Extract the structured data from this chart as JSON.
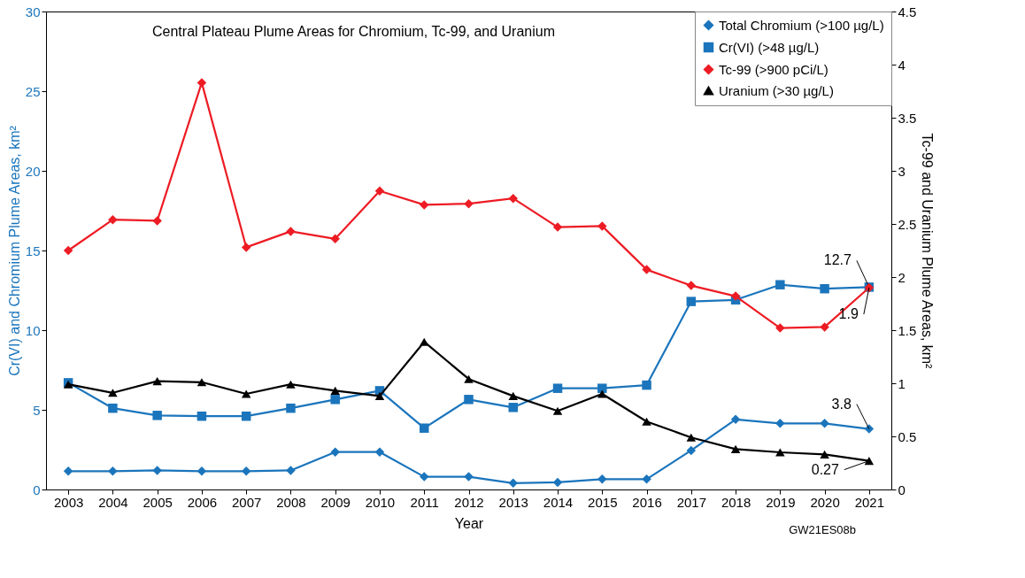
{
  "chart_data": {
    "type": "line",
    "title": "Central Plateau Plume Areas for Chromium, Tc-99, and Uranium",
    "xlabel": "Year",
    "ylabel": "Cr(VI) and Chromium Plume Areas, km²",
    "y2label": "Tc-99 and Uranium Plume Areas, km²",
    "categories": [
      "2003",
      "2004",
      "2005",
      "2006",
      "2007",
      "2008",
      "2009",
      "2010",
      "2011",
      "2012",
      "2013",
      "2014",
      "2015",
      "2016",
      "2017",
      "2018",
      "2019",
      "2020",
      "2021"
    ],
    "series": [
      {
        "name": "Total Chromium (>100 µg/L)",
        "color": "#1b75bc",
        "marker": "diamond",
        "values": [
          1.15,
          1.15,
          1.2,
          1.15,
          1.15,
          1.2,
          2.35,
          2.35,
          0.8,
          0.8,
          0.4,
          0.45,
          0.65,
          0.65,
          2.45,
          4.4,
          4.15,
          4.15,
          3.8
        ],
        "value_labels": [
          null,
          null,
          null,
          null,
          null,
          null,
          null,
          null,
          null,
          null,
          null,
          null,
          null,
          null,
          null,
          null,
          null,
          null,
          "3.8"
        ]
      },
      {
        "name": "Cr(VI) (>48 µg/L)",
        "color": "#1b75bc",
        "marker": "square",
        "values": [
          6.7,
          5.1,
          4.65,
          4.6,
          4.6,
          5.1,
          5.65,
          6.2,
          3.85,
          5.65,
          5.15,
          6.35,
          6.35,
          6.55,
          11.8,
          11.9,
          12.85,
          12.6,
          12.7
        ],
        "value_labels": [
          null,
          null,
          null,
          null,
          null,
          null,
          null,
          null,
          null,
          null,
          null,
          null,
          null,
          null,
          null,
          null,
          null,
          null,
          "12.7"
        ]
      },
      {
        "name": "Tc-99 (>900 pCi/L)",
        "color": "#ed1c24",
        "marker": "diamond",
        "axis": "y2",
        "values": [
          2.25,
          2.54,
          2.53,
          3.83,
          2.28,
          2.43,
          2.36,
          2.81,
          2.68,
          2.69,
          2.74,
          2.47,
          2.48,
          2.07,
          1.92,
          1.82,
          1.52,
          1.53,
          1.9
        ],
        "value_labels": [
          null,
          null,
          null,
          null,
          null,
          null,
          null,
          null,
          null,
          null,
          null,
          null,
          null,
          null,
          null,
          null,
          null,
          null,
          "1.9"
        ]
      },
      {
        "name": "Uranium (>30 µg/L)",
        "color": "#000000",
        "marker": "triangle",
        "axis": "y2",
        "values": [
          0.99,
          0.91,
          1.02,
          1.01,
          0.9,
          0.99,
          0.93,
          0.88,
          1.39,
          1.04,
          0.88,
          0.74,
          0.9,
          0.64,
          0.49,
          0.38,
          0.35,
          0.33,
          0.27
        ],
        "value_labels": [
          null,
          null,
          null,
          null,
          null,
          null,
          null,
          null,
          null,
          null,
          null,
          null,
          null,
          null,
          null,
          null,
          null,
          null,
          "0.27"
        ]
      }
    ],
    "ylim": [
      0,
      30
    ],
    "yticks": [
      0,
      5,
      10,
      15,
      20,
      25,
      30
    ],
    "y2lim": [
      0,
      4.5
    ],
    "y2ticks": [
      0.0,
      0.5,
      1.0,
      1.5,
      2.0,
      2.5,
      3.0,
      3.5,
      4.0,
      4.5
    ],
    "legend": "top right",
    "grid": false,
    "line_style": "solid",
    "annotations": [
      "GW21ES08b"
    ]
  }
}
